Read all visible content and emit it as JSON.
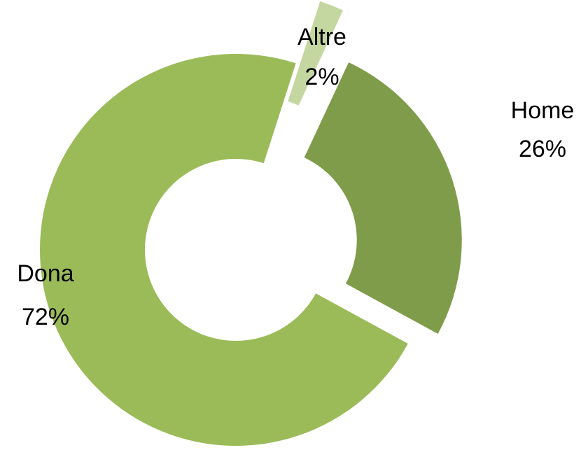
{
  "chart_data": {
    "type": "pie",
    "donut": true,
    "categories": [
      "Home",
      "Dona",
      "Altre"
    ],
    "values": [
      26,
      72,
      2
    ],
    "value_labels": [
      "26%",
      "72%",
      "2%"
    ],
    "colors": [
      "#7f9c4a",
      "#9bbb59",
      "#c4d7a0"
    ]
  }
}
